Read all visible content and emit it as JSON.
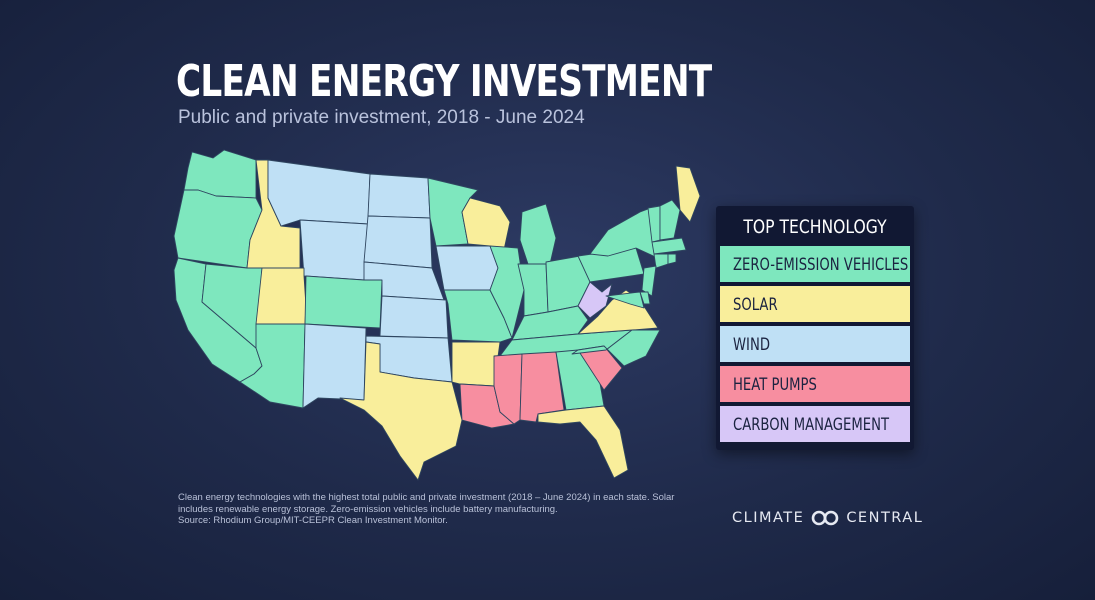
{
  "header": {
    "title": "CLEAN ENERGY INVESTMENT",
    "subtitle": "Public and private investment, 2018 - June 2024"
  },
  "legend": {
    "title": "TOP TECHNOLOGY",
    "items": [
      {
        "key": "zev",
        "label": "ZERO-EMISSION VEHICLES",
        "color": "#7ee7be"
      },
      {
        "key": "solar",
        "label": "SOLAR",
        "color": "#f9ee9b"
      },
      {
        "key": "wind",
        "label": "WIND",
        "color": "#bfe0f5"
      },
      {
        "key": "heat",
        "label": "HEAT PUMPS",
        "color": "#f78ea0"
      },
      {
        "key": "carbon",
        "label": "CARBON MANAGEMENT",
        "color": "#d7c7f7"
      }
    ]
  },
  "states": {
    "WA": "zev",
    "OR": "zev",
    "CA": "zev",
    "NV": "zev",
    "ID": "solar",
    "UT": "solar",
    "AZ": "zev",
    "MT": "wind",
    "WY": "wind",
    "CO": "zev",
    "NM": "wind",
    "ND": "wind",
    "SD": "wind",
    "NE": "wind",
    "KS": "wind",
    "OK": "wind",
    "TX": "solar",
    "MN": "zev",
    "IA": "wind",
    "MO": "zev",
    "AR": "solar",
    "LA": "heat",
    "WI": "solar",
    "IL": "zev",
    "MI": "zev",
    "IN": "zev",
    "OH": "zev",
    "KY": "zev",
    "TN": "zev",
    "MS": "heat",
    "AL": "heat",
    "GA": "zev",
    "FL": "solar",
    "SC": "heat",
    "NC": "zev",
    "VA": "solar",
    "WV": "carbon",
    "PA": "zev",
    "NY": "zev",
    "ME": "solar",
    "VT": "zev",
    "NH": "zev",
    "MA": "zev",
    "CT": "zev",
    "RI": "zev",
    "NJ": "zev",
    "DE": "zev",
    "MD": "zev"
  },
  "footnote": {
    "line1": "Clean energy technologies with the highest total public and private investment (2018 – June 2024) in each state. Solar",
    "line2": "includes renewable energy storage. Zero-emission vehicles include battery manufacturing.",
    "line3": "Source: Rhodium Group/MIT-CEEPR Clean Investment Monitor."
  },
  "brand": {
    "left": "CLIMATE",
    "right": "CENTRAL"
  }
}
